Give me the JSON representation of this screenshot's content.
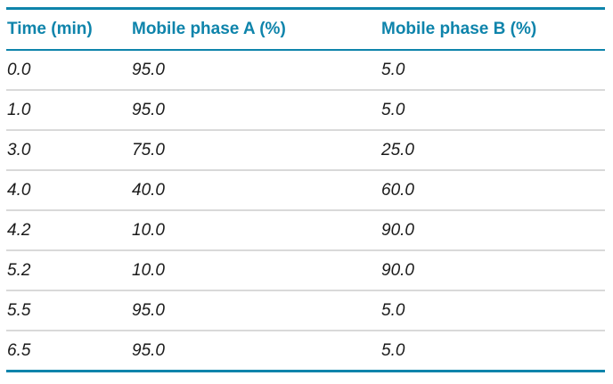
{
  "table": {
    "columns": [
      {
        "label": "Time (min)"
      },
      {
        "label": "Mobile phase A (%)"
      },
      {
        "label": "Mobile phase B (%)"
      }
    ],
    "rows": [
      {
        "cells": [
          "0.0",
          "95.0",
          "5.0"
        ]
      },
      {
        "cells": [
          "1.0",
          "95.0",
          "5.0"
        ]
      },
      {
        "cells": [
          "3.0",
          "75.0",
          "25.0"
        ]
      },
      {
        "cells": [
          "4.0",
          "40.0",
          "60.0"
        ]
      },
      {
        "cells": [
          "4.2",
          "10.0",
          "90.0"
        ]
      },
      {
        "cells": [
          "5.2",
          "10.0",
          "90.0"
        ]
      },
      {
        "cells": [
          "5.5",
          "95.0",
          "5.0"
        ]
      },
      {
        "cells": [
          "6.5",
          "95.0",
          "5.0"
        ]
      }
    ]
  },
  "colors": {
    "accent_teal": "#0e84ab",
    "row_separator": "#d9d9d9",
    "body_text": "#1a1a1a",
    "background": "#ffffff"
  },
  "chart_data": {
    "type": "table",
    "columns": [
      "Time (min)",
      "Mobile phase A (%)",
      "Mobile phase B (%)"
    ],
    "rows": [
      [
        0.0,
        95.0,
        5.0
      ],
      [
        1.0,
        95.0,
        5.0
      ],
      [
        3.0,
        75.0,
        25.0
      ],
      [
        4.0,
        40.0,
        60.0
      ],
      [
        4.2,
        10.0,
        90.0
      ],
      [
        5.2,
        10.0,
        90.0
      ],
      [
        5.5,
        95.0,
        5.0
      ],
      [
        6.5,
        95.0,
        5.0
      ]
    ]
  }
}
